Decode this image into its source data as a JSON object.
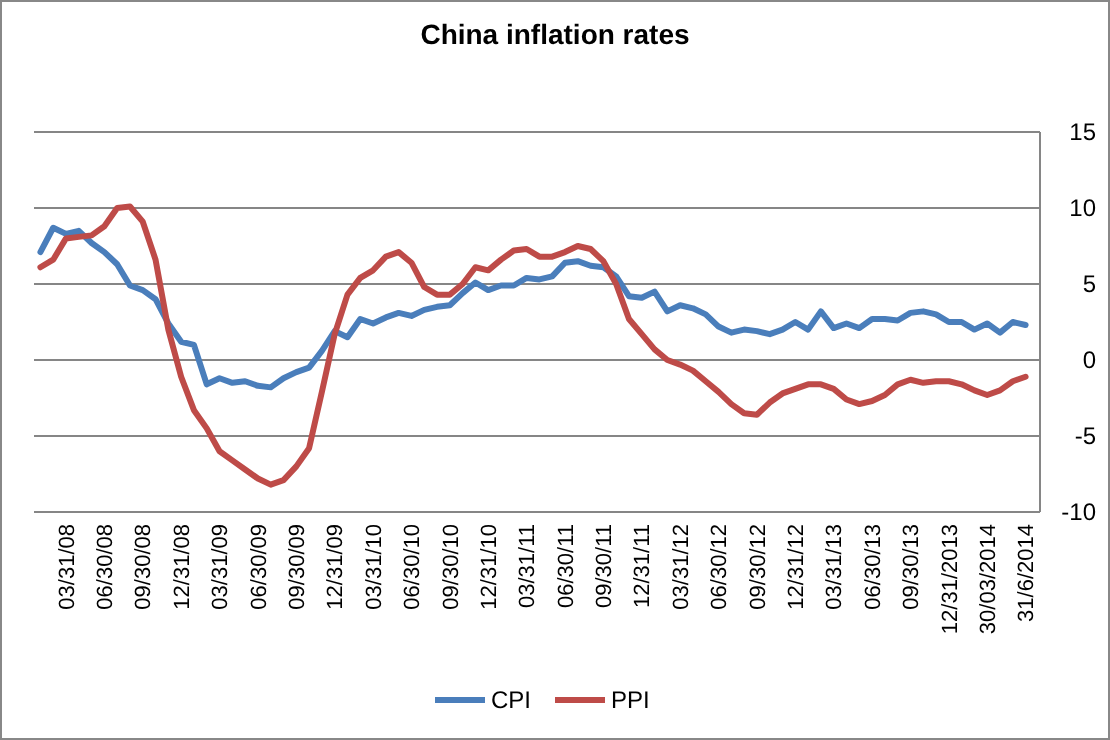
{
  "chart_data": {
    "type": "line",
    "title": "China inflation rates",
    "categories": [
      null,
      null,
      "03/31/08",
      null,
      null,
      "06/30/08",
      null,
      null,
      "09/30/08",
      null,
      null,
      "12/31/08",
      null,
      null,
      "03/31/09",
      null,
      null,
      "06/30/09",
      null,
      null,
      "09/30/09",
      null,
      null,
      "12/31/09",
      null,
      null,
      "03/31/10",
      null,
      null,
      "06/30/10",
      null,
      null,
      "09/30/10",
      null,
      null,
      "12/31/10",
      null,
      null,
      "03/31/11",
      null,
      null,
      "06/30/11",
      null,
      null,
      "09/30/11",
      null,
      null,
      "12/31/11",
      null,
      null,
      "03/31/12",
      null,
      null,
      "06/30/12",
      null,
      null,
      "09/30/12",
      null,
      null,
      "12/31/12",
      null,
      null,
      "03/31/13",
      null,
      null,
      "06/30/13",
      null,
      null,
      "09/30/13",
      null,
      null,
      "12/31/2013",
      null,
      null,
      "30/03/2014",
      null,
      null,
      "31/6/2014"
    ],
    "series": [
      {
        "name": "CPI",
        "color": "#4a7ebb",
        "values": [
          7.1,
          8.7,
          8.3,
          8.5,
          7.7,
          7.1,
          6.3,
          4.9,
          4.6,
          4.0,
          2.4,
          1.2,
          1.0,
          -1.6,
          -1.2,
          -1.5,
          -1.4,
          -1.7,
          -1.8,
          -1.2,
          -0.8,
          -0.5,
          0.6,
          1.9,
          1.5,
          2.7,
          2.4,
          2.8,
          3.1,
          2.9,
          3.3,
          3.5,
          3.6,
          4.4,
          5.1,
          4.6,
          4.9,
          4.9,
          5.4,
          5.3,
          5.5,
          6.4,
          6.5,
          6.2,
          6.1,
          5.5,
          4.2,
          4.1,
          4.5,
          3.2,
          3.6,
          3.4,
          3.0,
          2.2,
          1.8,
          2.0,
          1.9,
          1.7,
          2.0,
          2.5,
          2.0,
          3.2,
          2.1,
          2.4,
          2.1,
          2.7,
          2.7,
          2.6,
          3.1,
          3.2,
          3.0,
          2.5,
          2.5,
          2.0,
          2.4,
          1.8,
          2.5,
          2.3
        ]
      },
      {
        "name": "PPI",
        "color": "#be4b48",
        "values": [
          6.1,
          6.6,
          8.0,
          8.1,
          8.2,
          8.8,
          10.0,
          10.1,
          9.1,
          6.6,
          2.0,
          -1.1,
          -3.3,
          -4.5,
          -6.0,
          -6.6,
          -7.2,
          -7.8,
          -8.2,
          -7.9,
          -7.0,
          -5.8,
          -2.1,
          1.7,
          4.3,
          5.4,
          5.9,
          6.8,
          7.1,
          6.4,
          4.8,
          4.3,
          4.3,
          5.0,
          6.1,
          5.9,
          6.6,
          7.2,
          7.3,
          6.8,
          6.8,
          7.1,
          7.5,
          7.3,
          6.5,
          5.0,
          2.7,
          1.7,
          0.7,
          0.0,
          -0.3,
          -0.7,
          -1.4,
          -2.1,
          -2.9,
          -3.5,
          -3.6,
          -2.8,
          -2.2,
          -1.9,
          -1.6,
          -1.6,
          -1.9,
          -2.6,
          -2.9,
          -2.7,
          -2.3,
          -1.6,
          -1.3,
          -1.5,
          -1.4,
          -1.4,
          -1.6,
          -2.0,
          -2.3,
          -2.0,
          -1.4,
          -1.1
        ]
      }
    ],
    "ylim": [
      -10,
      15
    ],
    "yticks": [
      -10,
      -5,
      0,
      5,
      10,
      15
    ],
    "grid": "y",
    "legend": "bottom",
    "line_style": "solid",
    "marker": "none"
  }
}
